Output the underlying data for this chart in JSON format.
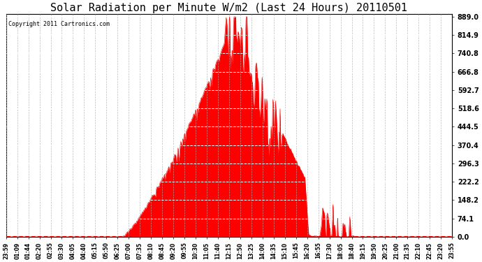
{
  "title": "Solar Radiation per Minute W/m2 (Last 24 Hours) 20110501",
  "copyright_text": "Copyright 2011 Cartronics.com",
  "y_ticks": [
    0.0,
    74.1,
    148.2,
    222.2,
    296.3,
    370.4,
    444.5,
    518.6,
    592.7,
    666.8,
    740.8,
    814.9,
    889.0
  ],
  "y_min": 0.0,
  "y_max": 889.0,
  "fill_color": "#FF0000",
  "line_color": "#FF0000",
  "dashed_line_color": "#FF0000",
  "grid_color_h": "#AAAAAA",
  "grid_color_v": "#AAAAAA",
  "background_color": "#FFFFFF",
  "title_fontsize": 11,
  "copyright_fontsize": 6,
  "x_labels": [
    "23:59",
    "01:09",
    "01:44",
    "02:20",
    "02:55",
    "03:30",
    "04:05",
    "04:40",
    "05:15",
    "05:50",
    "06:25",
    "07:00",
    "07:35",
    "08:10",
    "08:45",
    "09:20",
    "09:55",
    "10:30",
    "11:05",
    "11:40",
    "12:15",
    "12:50",
    "13:25",
    "14:00",
    "14:35",
    "15:10",
    "15:45",
    "16:20",
    "16:55",
    "17:30",
    "18:05",
    "18:40",
    "19:15",
    "19:50",
    "20:25",
    "21:00",
    "21:35",
    "22:10",
    "22:45",
    "23:20",
    "23:55"
  ]
}
